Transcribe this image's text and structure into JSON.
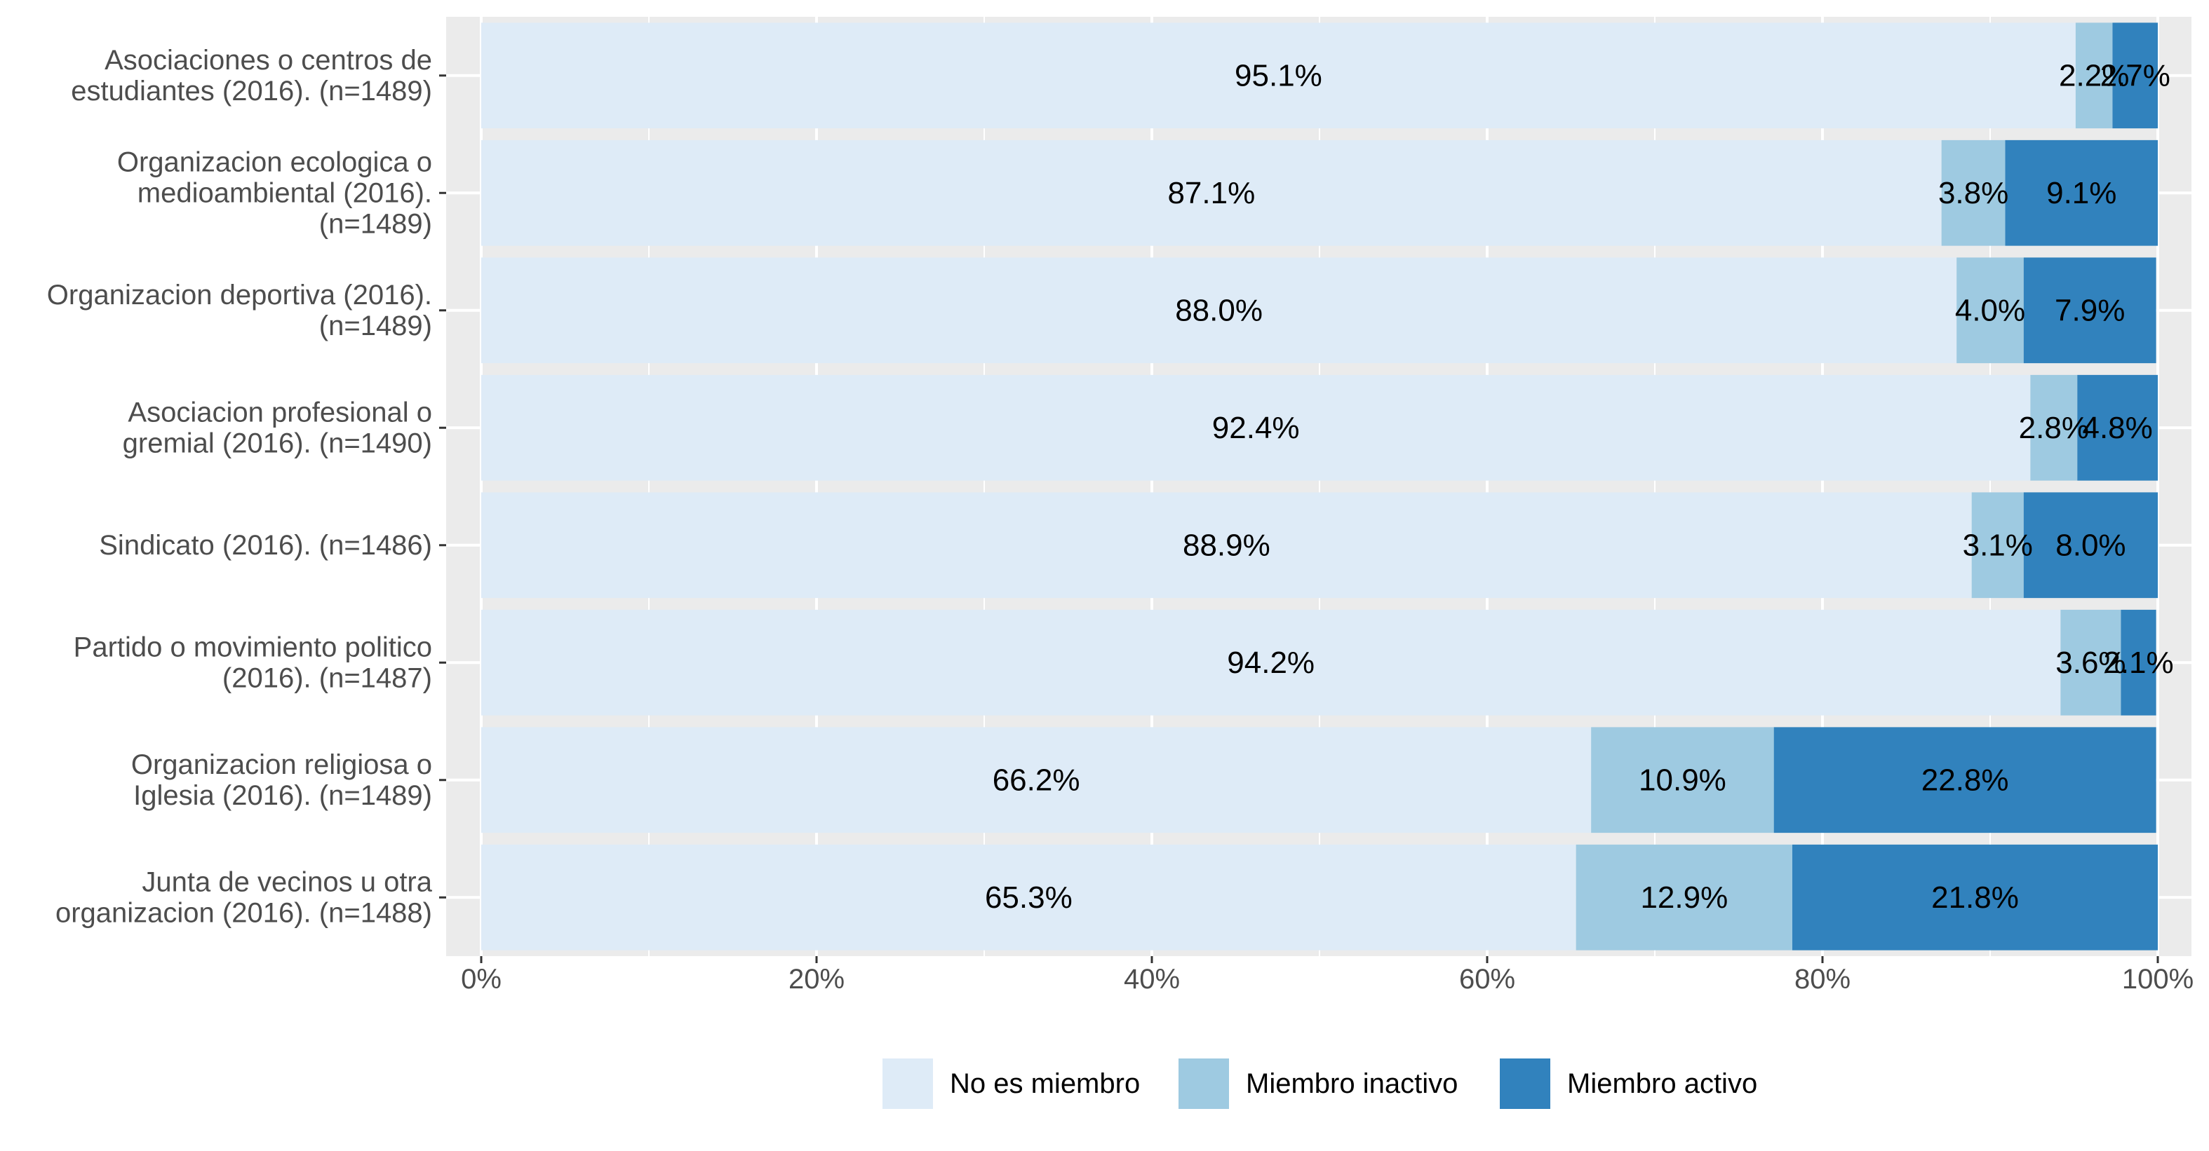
{
  "chart_data": {
    "type": "bar",
    "orientation": "horizontal",
    "stacked": true,
    "percent": true,
    "categories": [
      [
        "Asociaciones o centros de",
        "estudiantes (2016). (n=1489)"
      ],
      [
        "Organizacion ecologica o",
        "medioambiental (2016).",
        "(n=1489)"
      ],
      [
        "Organizacion deportiva (2016).",
        "(n=1489)"
      ],
      [
        "Asociacion profesional o",
        "gremial (2016). (n=1490)"
      ],
      [
        "Sindicato (2016). (n=1486)"
      ],
      [
        "Partido o movimiento politico",
        "(2016). (n=1487)"
      ],
      [
        "Organizacion religiosa o",
        "Iglesia (2016). (n=1489)"
      ],
      [
        "Junta de vecinos u otra",
        "organizacion (2016). (n=1488)"
      ]
    ],
    "series": [
      {
        "name": "No es miembro",
        "color": "#deebf7",
        "values": [
          95.1,
          87.1,
          88.0,
          92.4,
          88.9,
          94.2,
          66.2,
          65.3
        ],
        "labels": [
          "95.1%",
          "87.1%",
          "88.0%",
          "92.4%",
          "88.9%",
          "94.2%",
          "66.2%",
          "65.3%"
        ]
      },
      {
        "name": "Miembro inactivo",
        "color": "#9ecae1",
        "values": [
          2.2,
          3.8,
          4.0,
          2.8,
          3.1,
          3.6,
          10.9,
          12.9
        ],
        "labels": [
          "2.2%",
          "3.8%",
          "4.0%",
          "2.8%",
          "3.1%",
          "3.6%",
          "10.9%",
          "12.9%"
        ]
      },
      {
        "name": "Miembro activo",
        "color": "#3182bd",
        "values": [
          2.7,
          9.1,
          7.9,
          4.8,
          8.0,
          2.1,
          22.8,
          21.8
        ],
        "labels": [
          "2.7%",
          "9.1%",
          "7.9%",
          "4.8%",
          "8.0%",
          "2.1%",
          "22.8%",
          "21.8%"
        ]
      }
    ],
    "xlim": [
      0,
      100
    ],
    "xticks": [
      0,
      20,
      40,
      60,
      80,
      100
    ],
    "xtick_labels": [
      "0%",
      "20%",
      "40%",
      "60%",
      "80%",
      "100%"
    ],
    "grid": true,
    "panel_background": "#ebebeb",
    "legend_position": "bottom"
  }
}
